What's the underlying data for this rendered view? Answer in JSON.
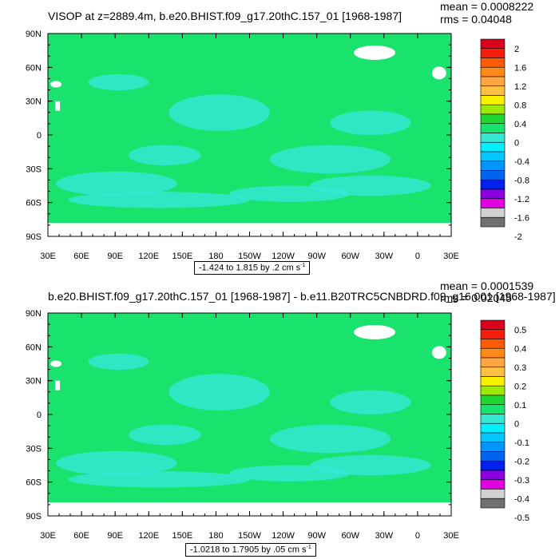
{
  "colors": {
    "ocean_fill": "#19e36c",
    "cyan_patch": "#35e8d3",
    "land_white": "#ffffff",
    "frame": "#000000"
  },
  "chart_data": [
    {
      "type": "heatmap",
      "title": "VISOP at z=2889.4m, b.e20.BHIST.f09_g17.20thC.157_01 [1968-1987]",
      "stats": {
        "mean": "mean = 0.0008222",
        "rms": "rms = 0.04048"
      },
      "x_ticks": [
        "30E",
        "60E",
        "90E",
        "120E",
        "150E",
        "180",
        "150W",
        "120W",
        "90W",
        "60W",
        "30W",
        "0",
        "30E"
      ],
      "y_ticks": [
        "90N",
        "60N",
        "30N",
        "0",
        "30S",
        "60S",
        "90S"
      ],
      "y_range_deg": [
        -90,
        90
      ],
      "x_range_deg": [
        30,
        390
      ],
      "range_label": "-1.424 to 1.815 by .2 cm s",
      "range_unit_sup": "-1",
      "colorbar_labels": [
        "2",
        "1.6",
        "1.2",
        "0.8",
        "0.4",
        "0",
        "-0.4",
        "-0.8",
        "-1.2",
        "-1.6",
        "-2"
      ],
      "colorbar_colors": [
        "#d9001c",
        "#f71e0e",
        "#ff5a05",
        "#ff8a1a",
        "#ffa640",
        "#ffc040",
        "#f7f000",
        "#9ce800",
        "#1ed732",
        "#19e36c",
        "#35e8d3",
        "#00f0ff",
        "#00c8ff",
        "#0096ff",
        "#0064f0",
        "#0020f0",
        "#8a00e0",
        "#e000e0",
        "#d0d0d0",
        "#707070"
      ]
    },
    {
      "type": "heatmap",
      "title": "b.e20.BHIST.f09_g17.20thC.157_01 [1968-1987] - b.e11.B20TRC5CNBDRD.f09_g16.001 [1968-1987]",
      "stats": {
        "mean": "mean = 0.0001539",
        "rms": "rms = 0.02045"
      },
      "x_ticks": [
        "30E",
        "60E",
        "90E",
        "120E",
        "150E",
        "180",
        "150W",
        "120W",
        "90W",
        "60W",
        "30W",
        "0",
        "30E"
      ],
      "y_ticks": [
        "90N",
        "60N",
        "30N",
        "0",
        "30S",
        "60S",
        "90S"
      ],
      "y_range_deg": [
        -90,
        90
      ],
      "x_range_deg": [
        30,
        390
      ],
      "range_label": "-1.0218 to 1.7905 by .05 cm s",
      "range_unit_sup": "-1",
      "colorbar_labels": [
        "0.5",
        "0.4",
        "0.3",
        "0.2",
        "0.1",
        "0",
        "-0.1",
        "-0.2",
        "-0.3",
        "-0.4",
        "-0.5"
      ],
      "colorbar_colors": [
        "#d9001c",
        "#f71e0e",
        "#ff5a05",
        "#ff8a1a",
        "#ffa640",
        "#ffc040",
        "#f7f000",
        "#9ce800",
        "#1ed732",
        "#19e36c",
        "#35e8d3",
        "#00f0ff",
        "#00c8ff",
        "#0096ff",
        "#0064f0",
        "#0020f0",
        "#8a00e0",
        "#e000e0",
        "#d0d0d0",
        "#707070"
      ]
    }
  ]
}
